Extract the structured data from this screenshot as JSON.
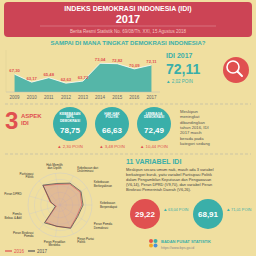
{
  "title": [
    "INDEKS DEMOKRASI INDONESIA (IDI)",
    "2017"
  ],
  "subtitle": "Berita Resmi Statistik No. 69/08/Th. XXI, 15 Agustus 2018",
  "chart_data": [
    {
      "type": "area",
      "title": "SAMPAI DI MANA TINGKAT DEMOKRASI INDONESIA?",
      "categories": [
        "2009",
        "2010",
        "2011",
        "2012",
        "2013",
        "2014",
        "2015",
        "2016",
        "2017"
      ],
      "values": [
        67.3,
        63.17,
        65.48,
        62.63,
        63.72,
        73.04,
        72.82,
        70.09,
        72.11
      ],
      "value_labels": [
        "67,30",
        "63,17",
        "65,48",
        "62,63",
        "63,72",
        "73,04",
        "72,82",
        "70,09",
        "72,11"
      ],
      "data_labels": true,
      "color": "#3aafa9",
      "ylim": [
        58,
        80
      ],
      "tick_labels": "x",
      "grid": false
    },
    {
      "type": "radar",
      "title": "11 VARIABEL IDI",
      "categories": [
        "Kebebasan\nBerpendapat",
        "Kebebasan\nBerkeyakinan",
        "Kebebasan dari\nDiskriminasi",
        "Hak Memilih\ndan Dipilih",
        "Partisipasi\nPolitik",
        "Peran DPRD",
        "Pemilu\nBebas & Adil",
        "Peran Birokrasi\nPemda",
        "Peran Peradilan\nMerdeka",
        "Peran Partai\nPolitik",
        "Peran Pemda\nDemokrasi"
      ],
      "series": [
        {
          "name": "2016",
          "color": "#e05050",
          "values": [
            68,
            75,
            72,
            65,
            80,
            32,
            12,
            70,
            68,
            78,
            63
          ]
        },
        {
          "name": "2017",
          "color": "#555555",
          "values": [
            72,
            78,
            75,
            68,
            82,
            29,
            15,
            74,
            67,
            80,
            66
          ]
        }
      ],
      "ylim": [
        0,
        100
      ],
      "yticks": [
        20,
        40,
        60,
        80
      ],
      "tick_labels": "x",
      "grid": true,
      "legend": "lower left"
    }
  ],
  "annotations": {
    "idi_2017": [
      "IDI 2017",
      "72,11",
      "▲ 2,02 POIN"
    ],
    "aspects": {
      "heading": [
        "3",
        "ASPEK",
        "IDI"
      ],
      "items": [
        {
          "label": "KEBEBASAN\nSIPIL\nDEMOKRASI",
          "value": "78,75",
          "change": "▲ 2,30 POIN"
        },
        {
          "label": "HAK-HAK\nPOLITIK",
          "value": "66,63",
          "change": "▲ 3,48 POIN"
        },
        {
          "label": "LEMBAGA\nDEMOKRASI",
          "value": "72,49",
          "change": "▲ 10,44 POIN"
        }
      ],
      "note": "Meskipun\nmeningkat\ndibandingkan\ntahun 2016, IDI\n2017 masih\nberada pada\nkategori sedang"
    },
    "variables": {
      "text": [
        "Meskipun secara umum naik, masih ada 3 variabel",
        "berkategori buruk, yaitu variabel Partisipasi Politik",
        "dalam Pengambilan Keputusan dan Pengawasan",
        "(V6,14), Peran DPRD (V9,70), dan variabel Peran",
        "Birokrasi Pemerintah Daerah (V6,26)."
      ],
      "circles": [
        {
          "value": "29,22",
          "arrow": "▲",
          "change": "63,04 POIN",
          "color": "#e05050"
        },
        {
          "value": "68,91",
          "arrow": "▲",
          "change": "71,01 POIN",
          "color": "#3aafa9"
        }
      ]
    },
    "footer": [
      "BADAN PUSAT STATISTIK",
      "https://www.bps.go.id"
    ]
  }
}
